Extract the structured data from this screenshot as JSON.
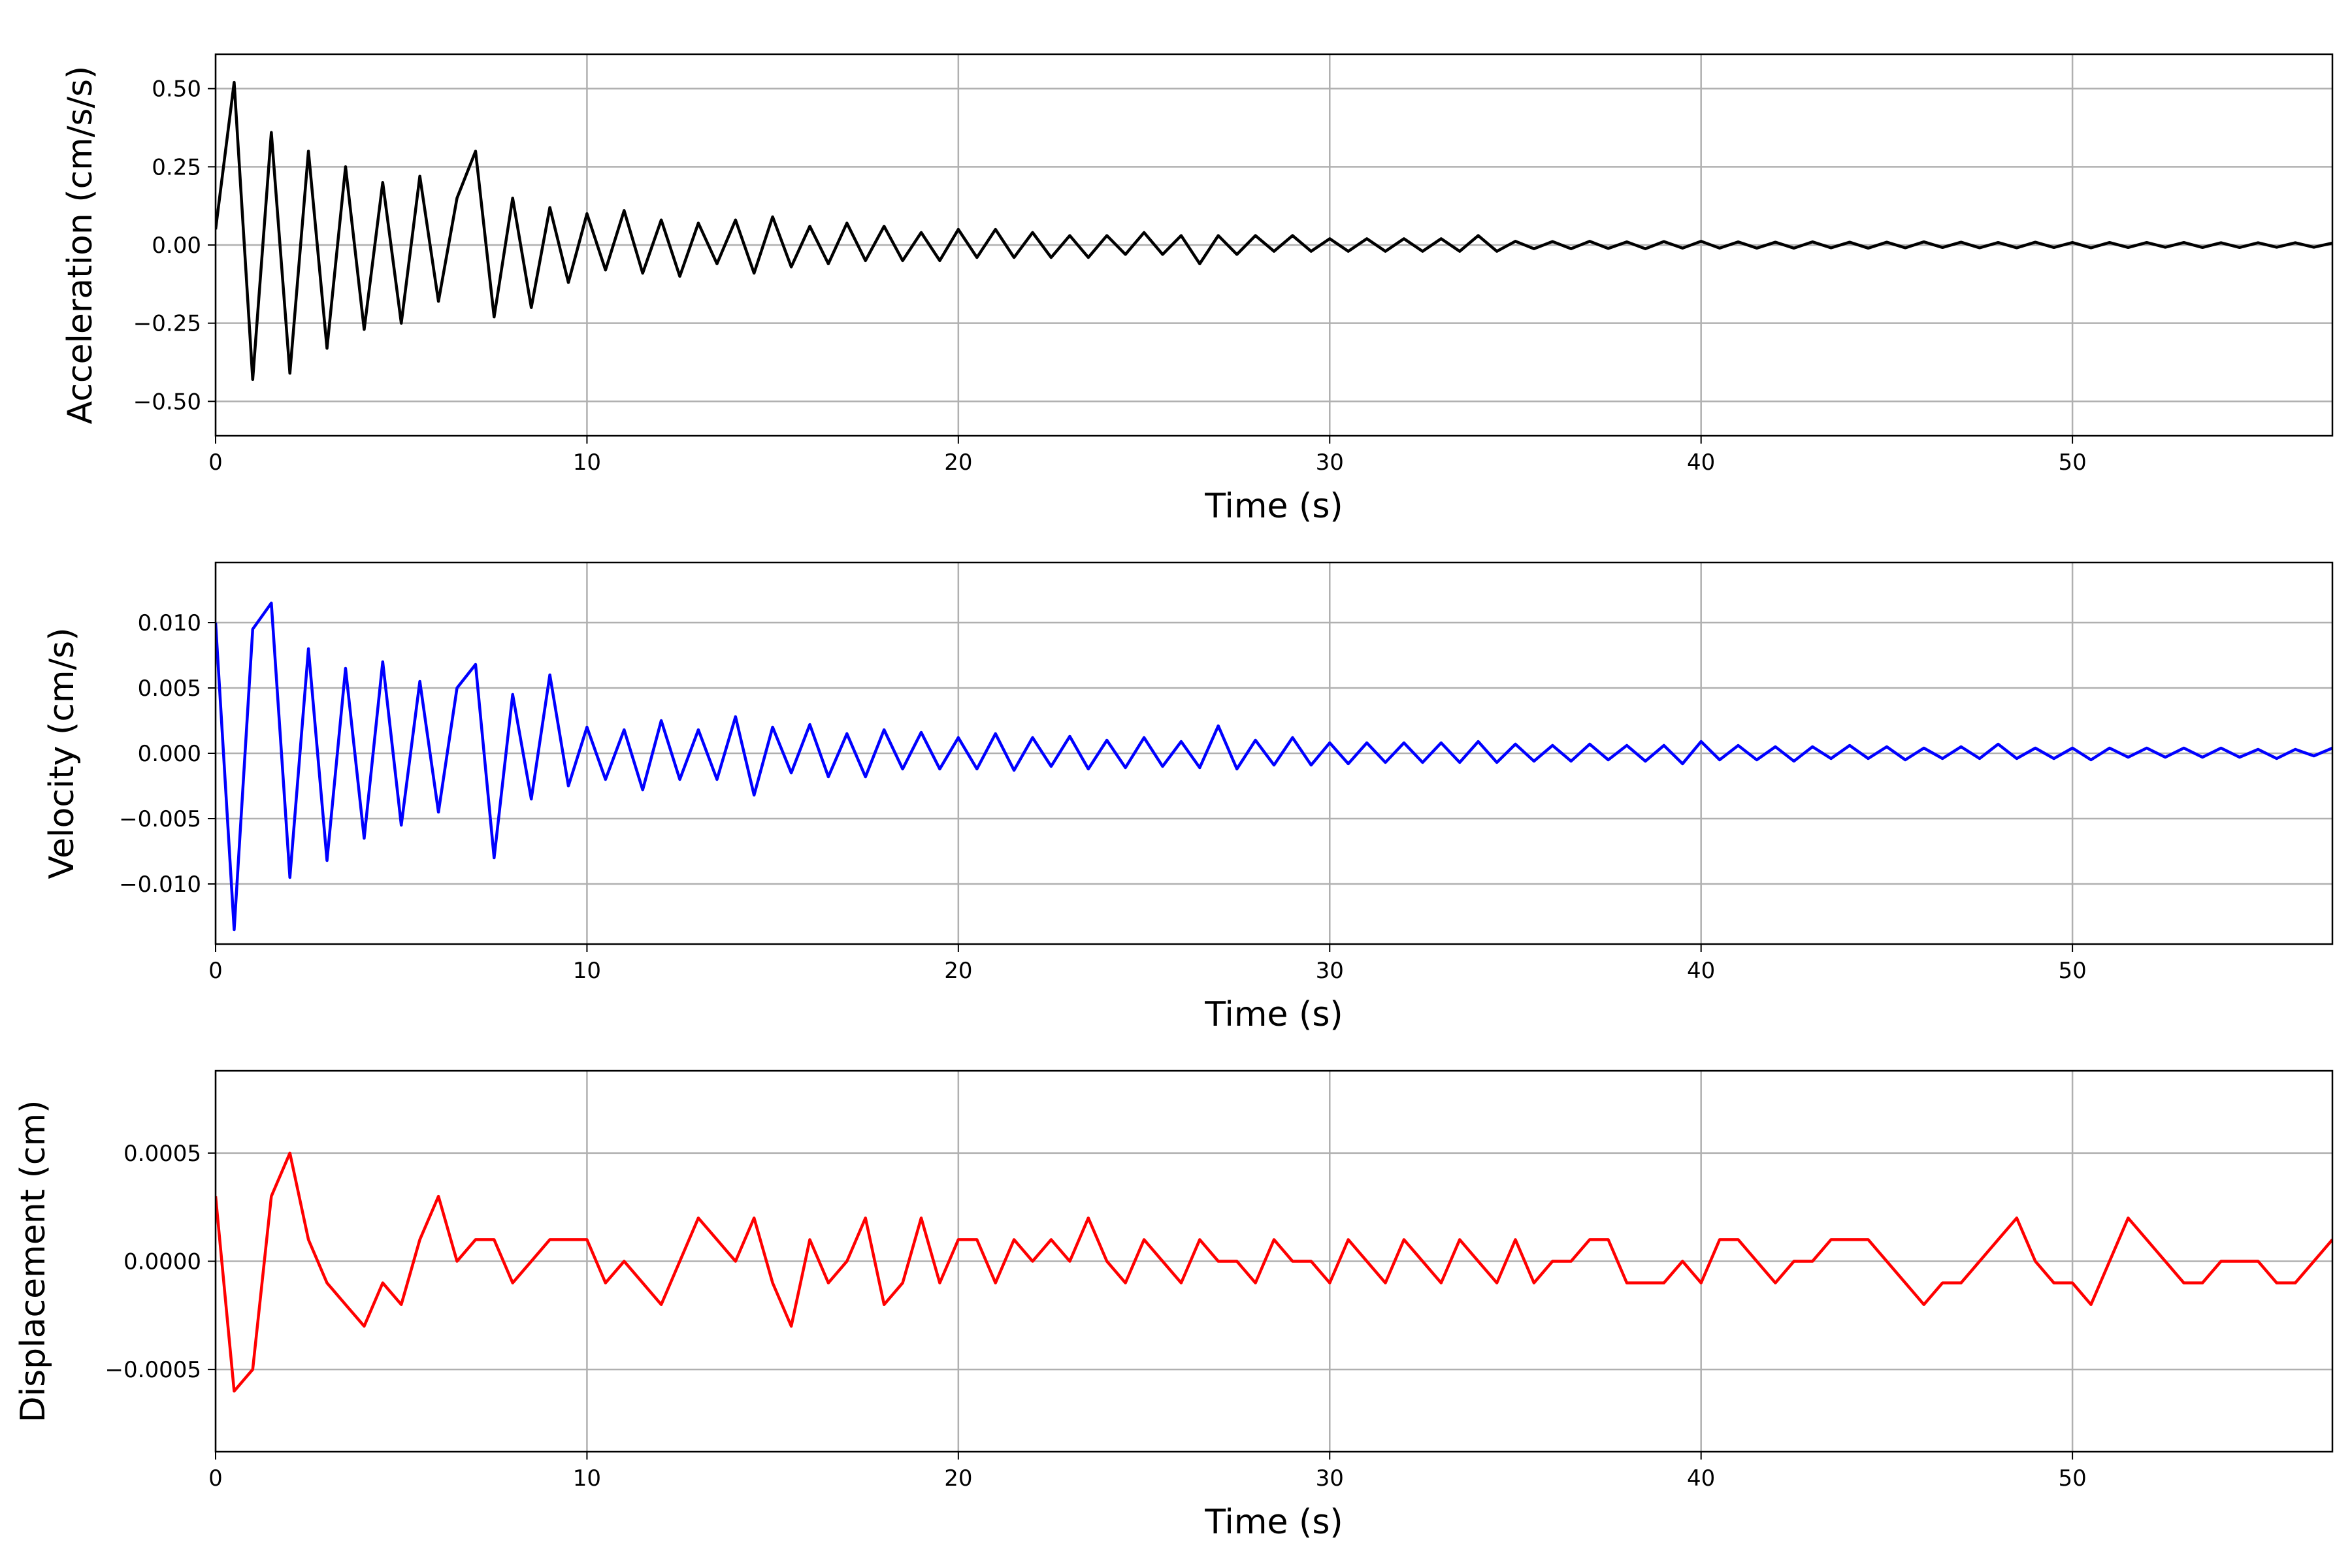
{
  "chart_data": [
    {
      "type": "line",
      "xlabel": "Time (s)",
      "ylabel": "Acceleration (cm/s/s)",
      "xlim": [
        0,
        57
      ],
      "ylim": [
        -0.61,
        0.61
      ],
      "xticks": [
        0,
        10,
        20,
        30,
        40,
        50
      ],
      "xtick_labels": [
        "0",
        "10",
        "20",
        "30",
        "40",
        "50"
      ],
      "yticks": [
        0.5,
        0.25,
        0,
        -0.25,
        -0.5
      ],
      "ytick_labels": [
        "0.50",
        "0.25",
        "0.00",
        "−0.25",
        "−0.50"
      ],
      "grid": true,
      "color": "#000000",
      "x": [
        0,
        0.5,
        1,
        1.5,
        2,
        2.5,
        3,
        3.5,
        4,
        4.5,
        5,
        5.5,
        6,
        6.5,
        7,
        7.5,
        8,
        8.5,
        9,
        9.5,
        10,
        10.5,
        11,
        11.5,
        12,
        12.5,
        13,
        13.5,
        14,
        14.5,
        15,
        15.5,
        16,
        16.5,
        17,
        17.5,
        18,
        18.5,
        19,
        19.5,
        20,
        20.5,
        21,
        21.5,
        22,
        22.5,
        23,
        23.5,
        24,
        24.5,
        25,
        25.5,
        26,
        26.5,
        27,
        27.5,
        28,
        28.5,
        29,
        29.5,
        30,
        30.5,
        31,
        31.5,
        32,
        32.5,
        33,
        33.5,
        34,
        34.5,
        35,
        35.5,
        36,
        36.5,
        37,
        37.5,
        38,
        38.5,
        39,
        39.5,
        40,
        40.5,
        41,
        41.5,
        42,
        42.5,
        43,
        43.5,
        44,
        44.5,
        45,
        45.5,
        46,
        46.5,
        47,
        47.5,
        48,
        48.5,
        49,
        49.5,
        50,
        50.5,
        51,
        51.5,
        52,
        52.5,
        53,
        53.5,
        54,
        54.5,
        55,
        55.5,
        56,
        56.5,
        57
      ],
      "values": [
        0.05,
        0.52,
        -0.43,
        0.36,
        -0.41,
        0.3,
        -0.33,
        0.25,
        -0.27,
        0.2,
        -0.25,
        0.22,
        -0.18,
        0.15,
        0.3,
        -0.23,
        0.15,
        -0.2,
        0.12,
        -0.12,
        0.1,
        -0.08,
        0.11,
        -0.09,
        0.08,
        -0.1,
        0.07,
        -0.06,
        0.08,
        -0.09,
        0.09,
        -0.07,
        0.06,
        -0.06,
        0.07,
        -0.05,
        0.06,
        -0.05,
        0.04,
        -0.05,
        0.05,
        -0.04,
        0.05,
        -0.04,
        0.04,
        -0.04,
        0.03,
        -0.04,
        0.03,
        -0.03,
        0.04,
        -0.03,
        0.03,
        -0.06,
        0.03,
        -0.03,
        0.03,
        -0.02,
        0.03,
        -0.02,
        0.02,
        -0.02,
        0.02,
        -0.02,
        0.02,
        -0.02,
        0.02,
        -0.02,
        0.03,
        -0.02,
        0.012,
        -0.012,
        0.011,
        -0.012,
        0.012,
        -0.011,
        0.01,
        -0.012,
        0.011,
        -0.01,
        0.012,
        -0.01,
        0.01,
        -0.01,
        0.009,
        -0.01,
        0.01,
        -0.009,
        0.009,
        -0.01,
        0.009,
        -0.009,
        0.01,
        -0.008,
        0.009,
        -0.009,
        0.008,
        -0.009,
        0.009,
        -0.008,
        0.008,
        -0.009,
        0.008,
        -0.008,
        0.008,
        -0.007,
        0.008,
        -0.008,
        0.007,
        -0.008,
        0.007,
        -0.007,
        0.007,
        -0.007,
        0.006
      ]
    },
    {
      "type": "line",
      "xlabel": "Time (s)",
      "ylabel": "Velocity (cm/s)",
      "xlim": [
        0,
        57
      ],
      "ylim": [
        -0.0146,
        0.0146
      ],
      "xticks": [
        0,
        10,
        20,
        30,
        40,
        50
      ],
      "xtick_labels": [
        "0",
        "10",
        "20",
        "30",
        "40",
        "50"
      ],
      "yticks": [
        0.01,
        0.005,
        0,
        -0.005,
        -0.01
      ],
      "ytick_labels": [
        "0.010",
        "0.005",
        "0.000",
        "−0.005",
        "−0.010"
      ],
      "grid": true,
      "color": "#0000ff",
      "x": [
        0,
        0.5,
        1,
        1.5,
        2,
        2.5,
        3,
        3.5,
        4,
        4.5,
        5,
        5.5,
        6,
        6.5,
        7,
        7.5,
        8,
        8.5,
        9,
        9.5,
        10,
        10.5,
        11,
        11.5,
        12,
        12.5,
        13,
        13.5,
        14,
        14.5,
        15,
        15.5,
        16,
        16.5,
        17,
        17.5,
        18,
        18.5,
        19,
        19.5,
        20,
        20.5,
        21,
        21.5,
        22,
        22.5,
        23,
        23.5,
        24,
        24.5,
        25,
        25.5,
        26,
        26.5,
        27,
        27.5,
        28,
        28.5,
        29,
        29.5,
        30,
        30.5,
        31,
        31.5,
        32,
        32.5,
        33,
        33.5,
        34,
        34.5,
        35,
        35.5,
        36,
        36.5,
        37,
        37.5,
        38,
        38.5,
        39,
        39.5,
        40,
        40.5,
        41,
        41.5,
        42,
        42.5,
        43,
        43.5,
        44,
        44.5,
        45,
        45.5,
        46,
        46.5,
        47,
        47.5,
        48,
        48.5,
        49,
        49.5,
        50,
        50.5,
        51,
        51.5,
        52,
        52.5,
        53,
        53.5,
        54,
        54.5,
        55,
        55.5,
        56,
        56.5,
        57
      ],
      "values": [
        0.01,
        -0.0135,
        0.0095,
        0.0115,
        -0.0095,
        0.008,
        -0.0082,
        0.0065,
        -0.0065,
        0.007,
        -0.0055,
        0.0055,
        -0.0045,
        0.005,
        0.0068,
        -0.008,
        0.0045,
        -0.0035,
        0.006,
        -0.0025,
        0.002,
        -0.002,
        0.0018,
        -0.0028,
        0.0025,
        -0.002,
        0.0018,
        -0.002,
        0.0028,
        -0.0032,
        0.002,
        -0.0015,
        0.0022,
        -0.0018,
        0.0015,
        -0.0018,
        0.0018,
        -0.0012,
        0.0016,
        -0.0012,
        0.0012,
        -0.0012,
        0.0015,
        -0.0013,
        0.0012,
        -0.001,
        0.0013,
        -0.0012,
        0.001,
        -0.0011,
        0.0012,
        -0.001,
        0.0009,
        -0.0011,
        0.0021,
        -0.0012,
        0.001,
        -0.0009,
        0.0012,
        -0.0009,
        0.0008,
        -0.0008,
        0.0008,
        -0.0007,
        0.0008,
        -0.0007,
        0.0008,
        -0.0007,
        0.0009,
        -0.0007,
        0.0007,
        -0.0006,
        0.0006,
        -0.0006,
        0.0007,
        -0.0005,
        0.0006,
        -0.0006,
        0.0006,
        -0.0008,
        0.0009,
        -0.0005,
        0.0006,
        -0.0005,
        0.0005,
        -0.0006,
        0.0005,
        -0.0004,
        0.0006,
        -0.0004,
        0.0005,
        -0.0005,
        0.0004,
        -0.0004,
        0.0005,
        -0.0004,
        0.0007,
        -0.0004,
        0.0004,
        -0.0004,
        0.0004,
        -0.0005,
        0.0004,
        -0.0003,
        0.0004,
        -0.0003,
        0.0004,
        -0.0003,
        0.0004,
        -0.0003,
        0.0003,
        -0.0004,
        0.0003,
        -0.0002,
        0.0004
      ]
    },
    {
      "type": "line",
      "xlabel": "Time (s)",
      "ylabel": "Displacement (cm)",
      "xlim": [
        0,
        57
      ],
      "ylim": [
        -0.00088,
        0.00088
      ],
      "xticks": [
        0,
        10,
        20,
        30,
        40,
        50
      ],
      "xtick_labels": [
        "0",
        "10",
        "20",
        "30",
        "40",
        "50"
      ],
      "yticks": [
        0.0005,
        0,
        -0.0005
      ],
      "ytick_labels": [
        "0.0005",
        "0.0000",
        "−0.0005"
      ],
      "grid": true,
      "color": "#ff0000",
      "x": [
        0,
        0.5,
        1,
        1.5,
        2,
        2.5,
        3,
        3.5,
        4,
        4.5,
        5,
        5.5,
        6,
        6.5,
        7,
        7.5,
        8,
        8.5,
        9,
        9.5,
        10,
        10.5,
        11,
        11.5,
        12,
        12.5,
        13,
        13.5,
        14,
        14.5,
        15,
        15.5,
        16,
        16.5,
        17,
        17.5,
        18,
        18.5,
        19,
        19.5,
        20,
        20.5,
        21,
        21.5,
        22,
        22.5,
        23,
        23.5,
        24,
        24.5,
        25,
        25.5,
        26,
        26.5,
        27,
        27.5,
        28,
        28.5,
        29,
        29.5,
        30,
        30.5,
        31,
        31.5,
        32,
        32.5,
        33,
        33.5,
        34,
        34.5,
        35,
        35.5,
        36,
        36.5,
        37,
        37.5,
        38,
        38.5,
        39,
        39.5,
        40,
        40.5,
        41,
        41.5,
        42,
        42.5,
        43,
        43.5,
        44,
        44.5,
        45,
        45.5,
        46,
        46.5,
        47,
        47.5,
        48,
        48.5,
        49,
        49.5,
        50,
        50.5,
        51,
        51.5,
        52,
        52.5,
        53,
        53.5,
        54,
        54.5,
        55,
        55.5,
        56,
        56.5,
        57
      ],
      "values": [
        0.0003,
        -0.0006,
        -0.0005,
        0.0003,
        0.0005,
        0.0001,
        -0.0001,
        -0.0002,
        -0.0003,
        -0.0001,
        -0.0002,
        0.0001,
        0.0003,
        0.0,
        0.0001,
        0.0001,
        -0.0001,
        0.0,
        0.0001,
        0.0001,
        0.0001,
        -0.0001,
        0.0,
        -0.0001,
        -0.0002,
        0.0,
        0.0002,
        0.0001,
        0.0,
        0.0002,
        -0.0001,
        -0.0003,
        0.0001,
        -0.0001,
        0.0,
        0.0002,
        -0.0002,
        -0.0001,
        0.0002,
        -0.0001,
        0.0001,
        0.0001,
        -0.0001,
        0.0001,
        0.0,
        0.0001,
        0.0,
        0.0002,
        0.0,
        -0.0001,
        0.0001,
        0.0,
        -0.0001,
        0.0001,
        0.0,
        0.0,
        -0.0001,
        0.0001,
        0.0,
        0.0,
        -0.0001,
        0.0001,
        0.0,
        -0.0001,
        0.0001,
        0.0,
        -0.0001,
        0.0001,
        0.0,
        -0.0001,
        0.0001,
        -0.0001,
        0.0,
        0.0,
        0.0001,
        0.0001,
        -0.0001,
        -0.0001,
        -0.0001,
        0.0,
        -0.0001,
        0.0001,
        0.0001,
        0.0,
        -0.0001,
        0.0,
        0.0,
        0.0001,
        0.0001,
        0.0001,
        0.0,
        -0.0001,
        -0.0002,
        -0.0001,
        -0.0001,
        0.0,
        0.0001,
        0.0002,
        0.0,
        -0.0001,
        -0.0001,
        -0.0002,
        0.0,
        0.0002,
        0.0001,
        0.0,
        -0.0001,
        -0.0001,
        0.0,
        0.0,
        0.0,
        -0.0001,
        -0.0001,
        0.0,
        0.0001
      ]
    }
  ]
}
